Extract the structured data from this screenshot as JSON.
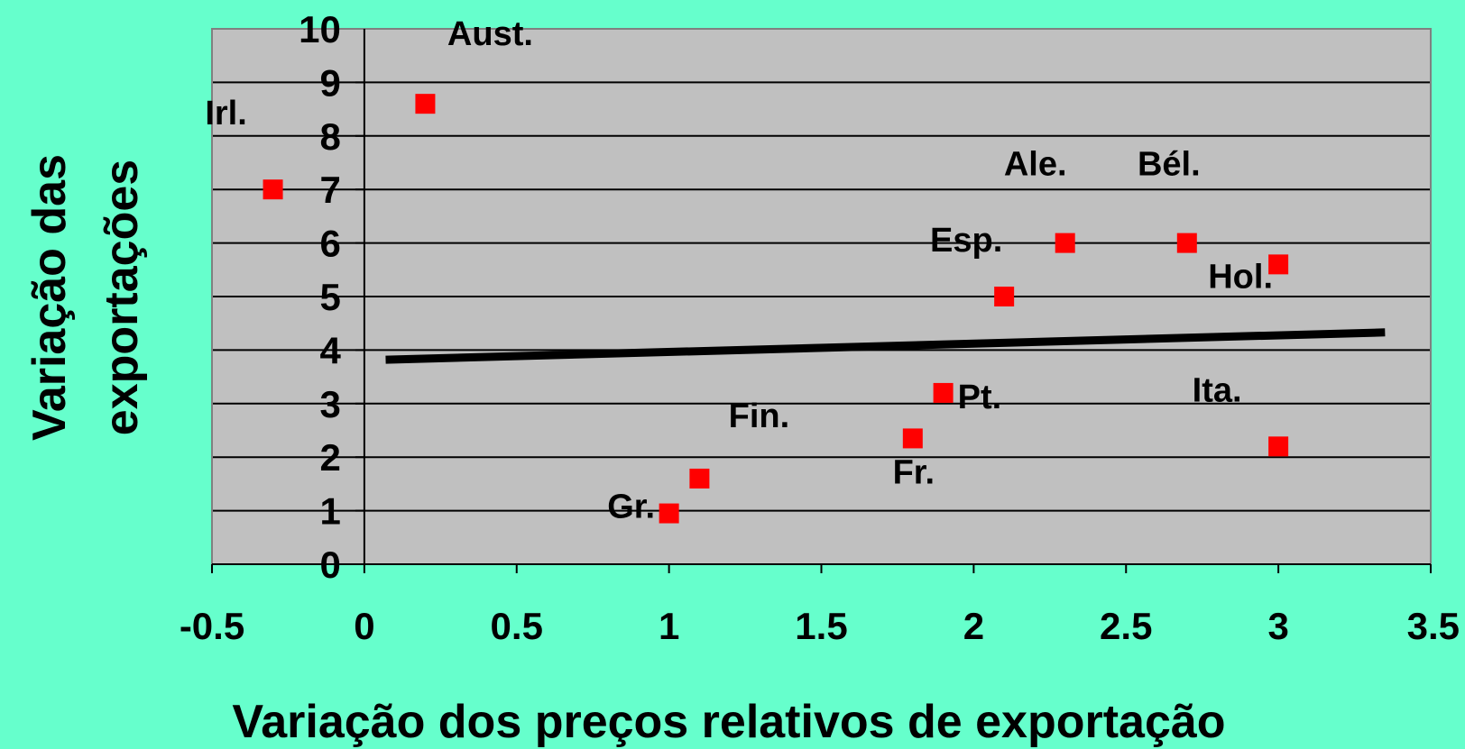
{
  "chart_data": {
    "type": "scatter",
    "xlabel": "Variação dos preços relativos de exportação",
    "ylabel_lines": [
      "Variação das",
      "exportações"
    ],
    "xlim": [
      -0.5,
      3.5
    ],
    "ylim": [
      0,
      10
    ],
    "x_ticks": [
      "-0.5",
      "0",
      "0.5",
      "1",
      "1.5",
      "2",
      "2.5",
      "3",
      "3.5"
    ],
    "y_ticks": [
      "0",
      "1",
      "2",
      "3",
      "4",
      "5",
      "6",
      "7",
      "8",
      "9",
      "10"
    ],
    "grid": "horizontal",
    "colors": {
      "background": "#66ffcc",
      "plot_area": "#c0c0c0",
      "marker": "#ff0000",
      "trendline": "#000000"
    },
    "points": [
      {
        "label": "Irl.",
        "x": -0.3,
        "y": 7.0
      },
      {
        "label": "Aust.",
        "x": 0.2,
        "y": 8.6
      },
      {
        "label": "Gr.",
        "x": 1.0,
        "y": 0.95
      },
      {
        "label": "Fin.",
        "x": 1.1,
        "y": 1.6
      },
      {
        "label": "Fr.",
        "x": 1.8,
        "y": 2.35
      },
      {
        "label": "Pt.",
        "x": 1.9,
        "y": 3.2
      },
      {
        "label": "Esp.",
        "x": 2.1,
        "y": 5.0
      },
      {
        "label": "Ale.",
        "x": 2.3,
        "y": 6.0
      },
      {
        "label": "Bél.",
        "x": 2.7,
        "y": 6.0
      },
      {
        "label": "Hol.",
        "x": 3.0,
        "y": 5.6
      },
      {
        "label": "Ita.",
        "x": 3.0,
        "y": 2.2
      }
    ],
    "trendline": {
      "x": [
        0.07,
        3.35
      ],
      "y": [
        3.82,
        4.33
      ]
    }
  }
}
